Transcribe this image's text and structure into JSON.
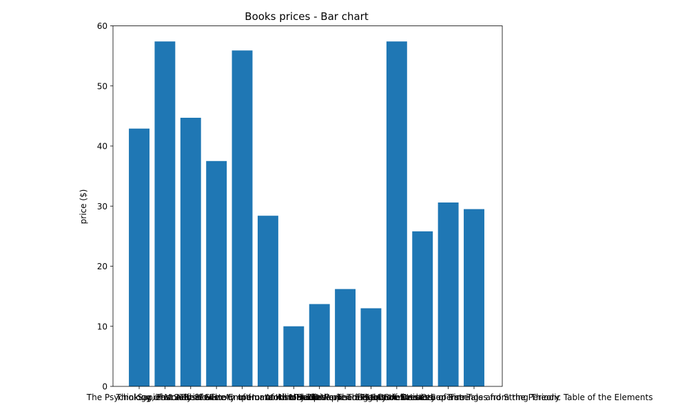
{
  "chart_data": {
    "type": "bar",
    "title": "Books prices - Bar chart",
    "xlabel": "",
    "ylabel": "price ($)",
    "ylim": [
      0,
      60
    ],
    "yticks": [
      0,
      10,
      20,
      30,
      40,
      50,
      60
    ],
    "grid": false,
    "legend": "none",
    "bar_color": "#1f77b4",
    "categories": [
      "The Psychology of Money",
      "Thinking, Fast and Slow",
      "The Selfish Gene",
      "Sapiens: A Brief History of Humankind",
      "The Gene: An Intimate History",
      "The Emperor of All Maladies",
      "Atomic Habits",
      "Deep Work",
      "The Power of Habit",
      "Outliers: The Story of Success",
      "The Code Breaker",
      "A Brief History of Time",
      "The Elegant Universe: Superstrings and String Theory",
      "The Disappearing Spoon: And Other True Tales from the Periodic Table of the Elements"
    ],
    "values": [
      42.9,
      57.4,
      44.7,
      37.5,
      55.9,
      28.4,
      10.0,
      13.7,
      16.2,
      13.0,
      57.4,
      25.8,
      30.6,
      29.5
    ]
  }
}
